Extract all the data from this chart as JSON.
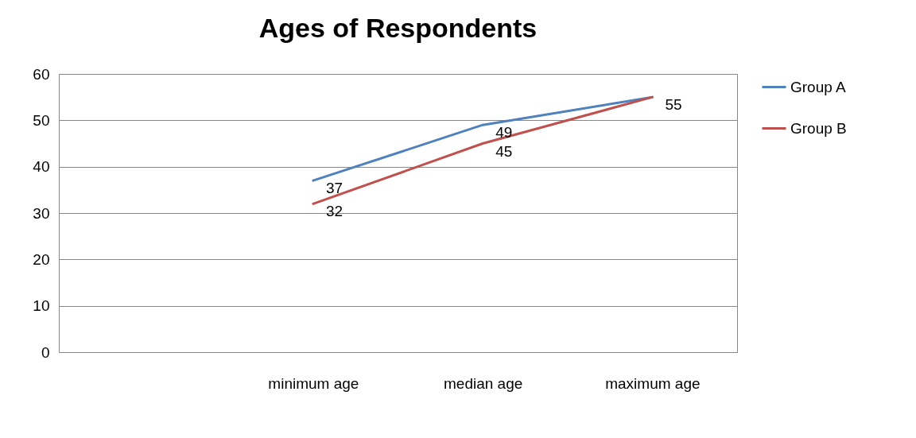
{
  "chart_data": {
    "type": "line",
    "title": "Ages of Respondents",
    "categories": [
      null,
      "minimum age",
      "median age",
      "maximum age"
    ],
    "series": [
      {
        "name": "Group A",
        "color": "#4f81bd",
        "values": [
          null,
          37,
          49,
          55
        ],
        "value_labels": [
          null,
          "37",
          "49",
          "55"
        ]
      },
      {
        "name": "Group B",
        "color": "#c0504d",
        "values": [
          null,
          32,
          45,
          55
        ],
        "value_labels": [
          null,
          "32",
          "45",
          null
        ]
      }
    ],
    "ylim": [
      0,
      60
    ],
    "yticks": [
      0,
      10,
      20,
      30,
      40,
      50,
      60
    ],
    "grid": "y",
    "legend": "right",
    "marker": "none",
    "line_style": "solid"
  }
}
